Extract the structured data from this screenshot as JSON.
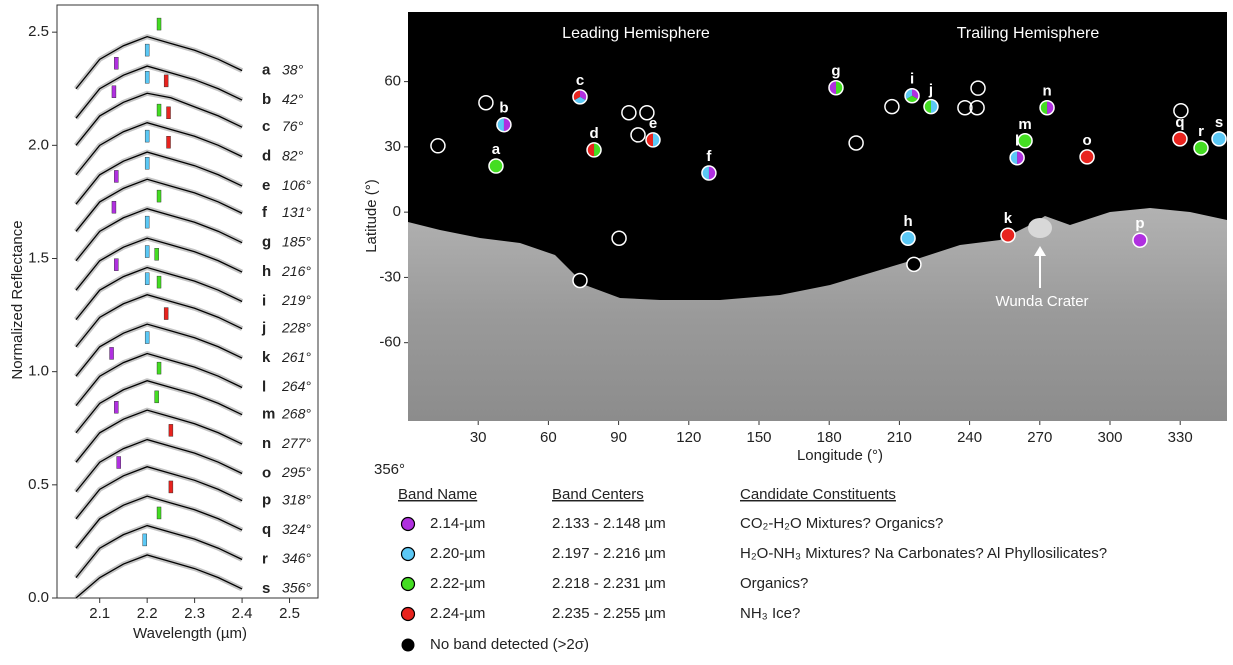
{
  "chart_data": [
    {
      "type": "spectra",
      "xlabel": "Wavelength (µm)",
      "ylabel": "Normalized Reflectance",
      "xlim": [
        2.01,
        2.56
      ],
      "xticks": [
        2.1,
        2.2,
        2.3,
        2.4,
        2.5
      ],
      "ylim": [
        0,
        2.62
      ],
      "yticks": [
        {
          "value": 0,
          "label": "0.0"
        },
        0.5,
        {
          "value": 1,
          "label": "1.0"
        },
        1.5,
        {
          "value": 2,
          "label": "2.0"
        },
        2.5
      ],
      "line_color": "#000000",
      "error_color": "#c4c4c4",
      "x": [
        2.05,
        2.1,
        2.15,
        2.2,
        2.25,
        2.3,
        2.35,
        2.4
      ],
      "series": [
        {
          "name": "a",
          "label": "38°",
          "values": [
            2.25,
            2.38,
            2.44,
            2.48,
            2.45,
            2.42,
            2.38,
            2.33
          ],
          "bands": [
            2.225
          ],
          "band_colors": [
            "#44dd22"
          ]
        },
        {
          "name": "b",
          "label": "42°",
          "values": [
            2.12,
            2.25,
            2.31,
            2.35,
            2.32,
            2.29,
            2.25,
            2.2
          ],
          "bands": [
            2.135,
            2.2
          ],
          "band_colors": [
            "#b030e0",
            "#5bc8f5"
          ]
        },
        {
          "name": "c",
          "label": "76°",
          "values": [
            2.0,
            2.13,
            2.19,
            2.23,
            2.21,
            2.17,
            2.13,
            2.08
          ],
          "bands": [
            2.13,
            2.2,
            2.24
          ],
          "band_colors": [
            "#b030e0",
            "#5bc8f5",
            "#e8231e"
          ]
        },
        {
          "name": "d",
          "label": "82°",
          "values": [
            1.87,
            2.0,
            2.06,
            2.1,
            2.07,
            2.04,
            2.0,
            1.95
          ],
          "bands": [
            2.225,
            2.245
          ],
          "band_colors": [
            "#44dd22",
            "#e8231e"
          ]
        },
        {
          "name": "e",
          "label": "106°",
          "values": [
            1.74,
            1.87,
            1.93,
            1.97,
            1.94,
            1.91,
            1.87,
            1.82
          ],
          "bands": [
            2.2,
            2.245
          ],
          "band_colors": [
            "#5bc8f5",
            "#e8231e"
          ]
        },
        {
          "name": "f",
          "label": "131°",
          "values": [
            1.62,
            1.75,
            1.81,
            1.85,
            1.82,
            1.79,
            1.75,
            1.7
          ],
          "bands": [
            2.135,
            2.2
          ],
          "band_colors": [
            "#b030e0",
            "#5bc8f5"
          ]
        },
        {
          "name": "g",
          "label": "185°",
          "values": [
            1.49,
            1.62,
            1.68,
            1.72,
            1.69,
            1.66,
            1.62,
            1.57
          ],
          "bands": [
            2.13,
            2.225
          ],
          "band_colors": [
            "#b030e0",
            "#44dd22"
          ]
        },
        {
          "name": "h",
          "label": "216°",
          "values": [
            1.36,
            1.49,
            1.55,
            1.59,
            1.56,
            1.53,
            1.49,
            1.44
          ],
          "bands": [
            2.2
          ],
          "band_colors": [
            "#5bc8f5"
          ]
        },
        {
          "name": "i",
          "label": "219°",
          "values": [
            1.23,
            1.36,
            1.42,
            1.46,
            1.43,
            1.4,
            1.36,
            1.31
          ],
          "bands": [
            2.135,
            2.2,
            2.22
          ],
          "band_colors": [
            "#b030e0",
            "#5bc8f5",
            "#44dd22"
          ]
        },
        {
          "name": "j",
          "label": "228°",
          "values": [
            1.11,
            1.24,
            1.3,
            1.34,
            1.31,
            1.28,
            1.24,
            1.19
          ],
          "bands": [
            2.2,
            2.225
          ],
          "band_colors": [
            "#5bc8f5",
            "#44dd22"
          ]
        },
        {
          "name": "k",
          "label": "261°",
          "values": [
            0.98,
            1.11,
            1.17,
            1.21,
            1.18,
            1.15,
            1.11,
            1.06
          ],
          "bands": [
            2.24
          ],
          "band_colors": [
            "#e8231e"
          ]
        },
        {
          "name": "l",
          "label": "264°",
          "values": [
            0.85,
            0.98,
            1.04,
            1.08,
            1.05,
            1.02,
            0.98,
            0.93
          ],
          "bands": [
            2.125,
            2.2
          ],
          "band_colors": [
            "#b030e0",
            "#5bc8f5"
          ]
        },
        {
          "name": "m",
          "label": "268°",
          "values": [
            0.73,
            0.86,
            0.92,
            0.96,
            0.93,
            0.9,
            0.86,
            0.81
          ],
          "bands": [
            2.225
          ],
          "band_colors": [
            "#44dd22"
          ]
        },
        {
          "name": "n",
          "label": "277°",
          "values": [
            0.6,
            0.73,
            0.79,
            0.83,
            0.8,
            0.77,
            0.73,
            0.68
          ],
          "bands": [
            2.135,
            2.22
          ],
          "band_colors": [
            "#b030e0",
            "#44dd22"
          ]
        },
        {
          "name": "o",
          "label": "295°",
          "values": [
            0.47,
            0.6,
            0.66,
            0.7,
            0.67,
            0.64,
            0.6,
            0.55
          ],
          "bands": [
            2.25
          ],
          "band_colors": [
            "#e8231e"
          ]
        },
        {
          "name": "p",
          "label": "318°",
          "values": [
            0.35,
            0.48,
            0.54,
            0.58,
            0.55,
            0.52,
            0.48,
            0.43
          ],
          "bands": [
            2.14
          ],
          "band_colors": [
            "#b030e0"
          ]
        },
        {
          "name": "q",
          "label": "324°",
          "values": [
            0.22,
            0.35,
            0.41,
            0.45,
            0.42,
            0.39,
            0.35,
            0.3
          ],
          "bands": [
            2.25
          ],
          "band_colors": [
            "#e8231e"
          ]
        },
        {
          "name": "r",
          "label": "346°",
          "values": [
            0.09,
            0.22,
            0.28,
            0.32,
            0.29,
            0.26,
            0.22,
            0.17
          ],
          "bands": [
            2.225
          ],
          "band_colors": [
            "#44dd22"
          ]
        },
        {
          "name": "s",
          "label": "356°",
          "values": [
            0.0,
            0.09,
            0.15,
            0.19,
            0.16,
            0.13,
            0.09,
            0.04
          ],
          "bands": [
            2.195
          ],
          "band_colors": [
            "#5bc8f5"
          ]
        }
      ]
    },
    {
      "type": "scatter",
      "xlabel": "Longitude (°)",
      "ylabel": "Latitude (°)",
      "xlim": [
        0,
        350
      ],
      "xticks": [
        30,
        60,
        90,
        120,
        150,
        180,
        210,
        240,
        270,
        300,
        330
      ],
      "ylim": [
        -96,
        92
      ],
      "yticks": [
        -60,
        -30,
        0,
        30,
        60
      ],
      "leading_label": "Leading Hemisphere",
      "trailing_label": "Trailing Hemisphere",
      "crater_label": "Wunda Crater",
      "stray_label": "356°",
      "points": [
        {
          "name": "a",
          "x": 37.6,
          "y": 21.2,
          "colors": [
            "#44dd22"
          ]
        },
        {
          "name": "b",
          "x": 41,
          "y": 40.2,
          "colors": [
            "#b030e0",
            "#5bc8f5"
          ]
        },
        {
          "name": "c",
          "x": 73.5,
          "y": 53,
          "colors": [
            "#b030e0",
            "#5bc8f5",
            "#e8231e"
          ]
        },
        {
          "name": "d",
          "x": 79.5,
          "y": 28.6,
          "colors": [
            "#44dd22",
            "#e8231e"
          ]
        },
        {
          "name": "e",
          "x": 104.7,
          "y": 33.2,
          "colors": [
            "#5bc8f5",
            "#e8231e"
          ]
        },
        {
          "name": "f",
          "x": 128.6,
          "y": 18,
          "colors": [
            "#b030e0",
            "#5bc8f5"
          ]
        },
        {
          "name": "g",
          "x": 182.9,
          "y": 57.2,
          "colors": [
            "#44dd22",
            "#b030e0"
          ]
        },
        {
          "name": "h",
          "x": 213.7,
          "y": -12,
          "colors": [
            "#5bc8f5"
          ]
        },
        {
          "name": "i",
          "x": 215.4,
          "y": 53.5,
          "colors": [
            "#b030e0",
            "#44dd22",
            "#5bc8f5"
          ]
        },
        {
          "name": "j",
          "x": 223.5,
          "y": 48.5,
          "colors": [
            "#5bc8f5",
            "#44dd22"
          ]
        },
        {
          "name": "k",
          "x": 256.4,
          "y": -10.6,
          "colors": [
            "#e8231e"
          ]
        },
        {
          "name": "l",
          "x": 260.3,
          "y": 25,
          "colors": [
            "#b030e0",
            "#5bc8f5"
          ]
        },
        {
          "name": "m",
          "x": 263.7,
          "y": 32.8,
          "colors": [
            "#44dd22"
          ]
        },
        {
          "name": "n",
          "x": 273.1,
          "y": 48,
          "colors": [
            "#b030e0",
            "#44dd22"
          ]
        },
        {
          "name": "o",
          "x": 290.2,
          "y": 25.4,
          "colors": [
            "#e8231e"
          ]
        },
        {
          "name": "p",
          "x": 312.8,
          "y": -12.9,
          "colors": [
            "#b030e0"
          ]
        },
        {
          "name": "q",
          "x": 329.9,
          "y": 33.7,
          "colors": [
            "#e8231e"
          ]
        },
        {
          "name": "r",
          "x": 338.9,
          "y": 29.5,
          "colors": [
            "#44dd22"
          ]
        },
        {
          "name": "s",
          "x": 346.6,
          "y": 33.7,
          "colors": [
            "#5bc8f5"
          ]
        }
      ],
      "no_band": {
        "color": "#000000",
        "x": [
          73.5,
          216.2
        ],
        "y": [
          -31.4,
          -24
        ]
      },
      "open": {
        "x": [
          12.8,
          33.3,
          94.4,
          102.1,
          98.3,
          191.5,
          206.8,
          238,
          243.2,
          243.6,
          330.3,
          90.2
        ],
        "y": [
          30.5,
          50.3,
          45.7,
          45.7,
          35.5,
          31.8,
          48.5,
          48,
          48,
          57,
          46.6,
          -12
        ]
      },
      "legend": {
        "headers": [
          "Band Name",
          "Band Centers",
          "Candidate Constituents"
        ],
        "rows": [
          {
            "color": "#b030e0",
            "name": "2.14-µm",
            "centers": "2.133 - 2.148 µm",
            "constituents": "CO₂-H₂O Mixtures?  Organics?"
          },
          {
            "color": "#5bc8f5",
            "name": "2.20-µm",
            "centers": "2.197 - 2.216 µm",
            "constituents": "H₂O-NH₃ Mixtures?  Na Carbonates?  Al Phyllosilicates?"
          },
          {
            "color": "#44dd22",
            "name": "2.22-µm",
            "centers": "2.218 - 2.231 µm",
            "constituents": "Organics?"
          },
          {
            "color": "#e8231e",
            "name": "2.24-µm",
            "centers": "2.235 - 2.255 µm",
            "constituents": "NH₃ Ice?"
          }
        ],
        "no_band_label": "No band detected (>2σ)"
      }
    }
  ]
}
